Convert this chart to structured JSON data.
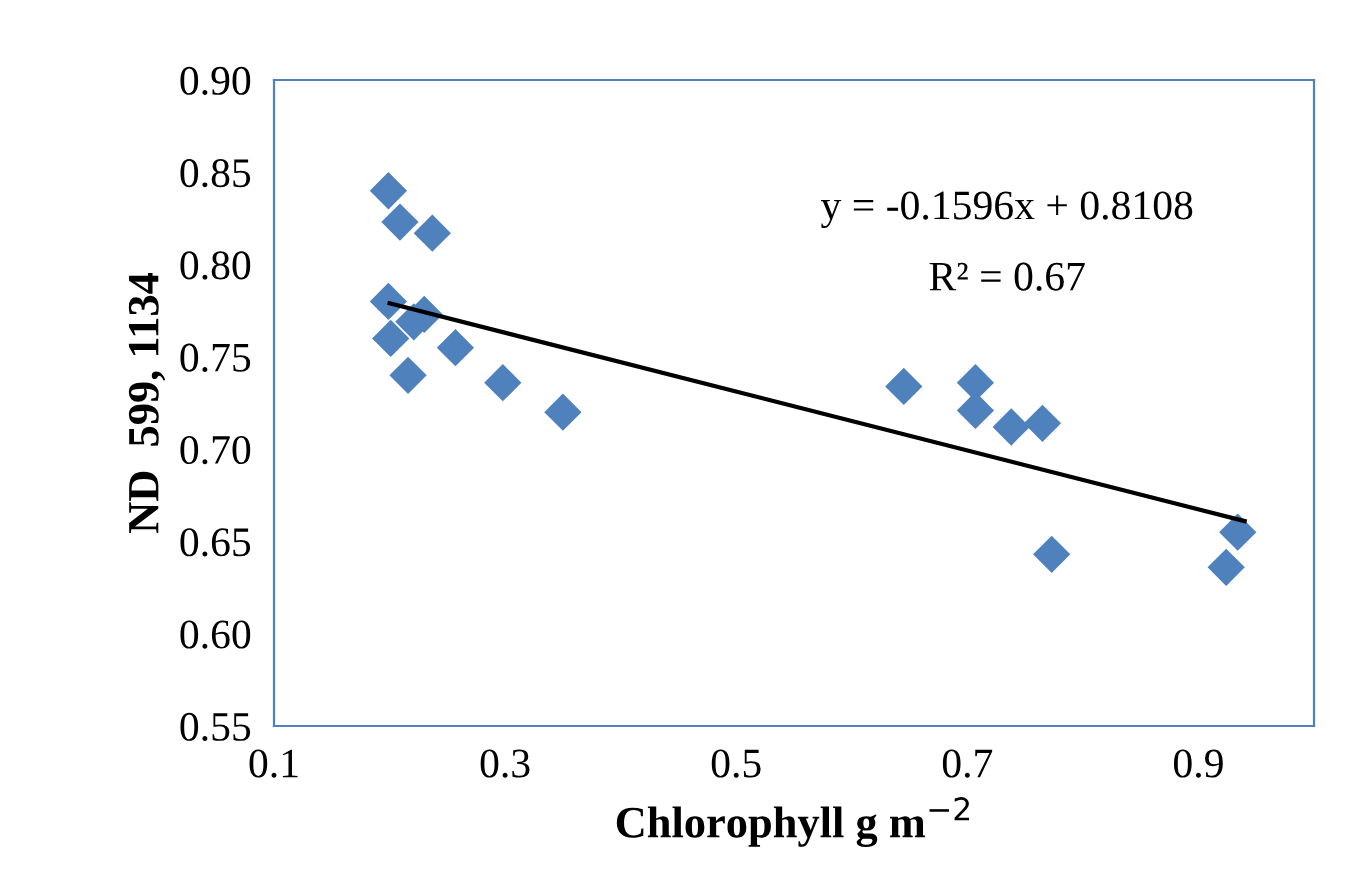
{
  "chart_data": {
    "type": "scatter",
    "xlabel": "Chlorophyll g m$^{−2}$",
    "ylabel": "ND  599, 1134",
    "xlim": [
      0.1,
      1.0
    ],
    "xticks": [
      0.1,
      0.3,
      0.5,
      0.7,
      0.9
    ],
    "ylim": [
      0.55,
      0.9
    ],
    "yticks": [
      {
        "value": 0.55,
        "label": "0.55"
      },
      {
        "value": 0.6,
        "label": "0.60"
      },
      {
        "value": 0.65,
        "label": "0.65"
      },
      {
        "value": 0.7,
        "label": "0.70"
      },
      {
        "value": 0.75,
        "label": "0.75"
      },
      {
        "value": 0.8,
        "label": "0.80"
      },
      {
        "value": 0.85,
        "label": "0.85"
      },
      {
        "value": 0.9,
        "label": "0.90"
      }
    ],
    "grid": false,
    "series": [
      {
        "marker": "diamond",
        "color": "#4f81bd",
        "x": [
          0.199,
          0.209,
          0.237,
          0.199,
          0.201,
          0.221,
          0.23,
          0.257,
          0.216,
          0.298,
          0.35,
          0.645,
          0.707,
          0.707,
          0.738,
          0.765,
          0.773,
          0.934,
          0.924
        ],
        "values": [
          0.84,
          0.823,
          0.817,
          0.78,
          0.76,
          0.769,
          0.773,
          0.755,
          0.74,
          0.736,
          0.72,
          0.734,
          0.736,
          0.721,
          0.712,
          0.714,
          0.643,
          0.655,
          0.636
        ]
      },
      {
        "type": "line",
        "color": "#000000",
        "x": [
          0.2,
          0.94
        ],
        "values": [
          0.779,
          0.661
        ]
      }
    ],
    "annotations": [
      "y = -0.1596x + 0.8108",
      "R² = 0.67"
    ]
  }
}
